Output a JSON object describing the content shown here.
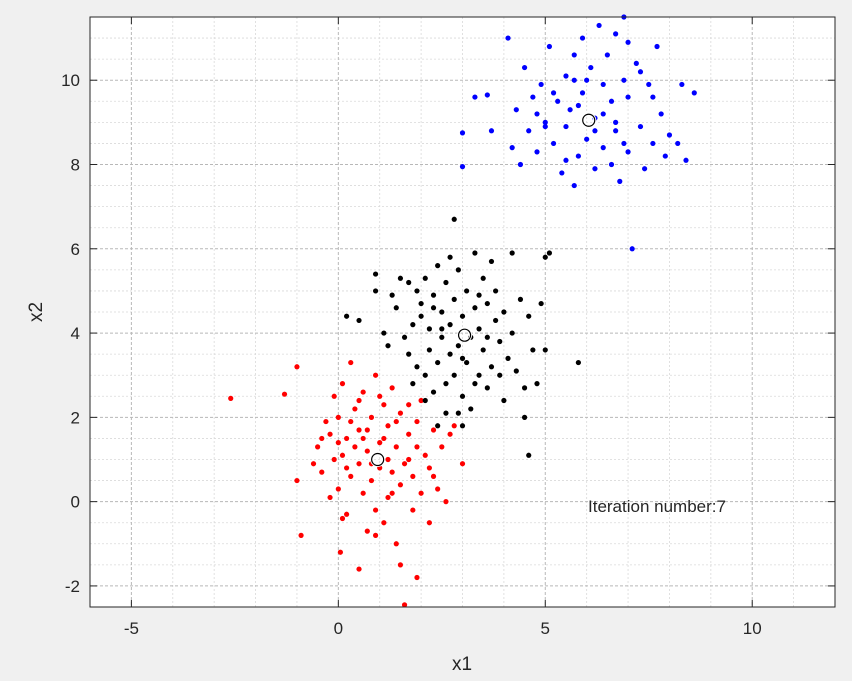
{
  "chart_data": {
    "type": "scatter",
    "title": "",
    "xlabel": "x1",
    "ylabel": "x2",
    "xlim": [
      -6,
      12
    ],
    "ylim": [
      -2.5,
      11.5
    ],
    "xticks": [
      -5,
      0,
      5,
      10
    ],
    "yticks": [
      -2,
      0,
      2,
      4,
      6,
      8,
      10
    ],
    "grid": true,
    "minor_grid": true,
    "annotation": "Iteration number:7",
    "colors": {
      "cluster_1": "#ff0000",
      "cluster_2": "#000000",
      "cluster_3": "#0000ff",
      "centroid": "#000000"
    },
    "series": [
      {
        "color": "#ff0000",
        "points": [
          [
            -2.6,
            2.45
          ],
          [
            -1.3,
            2.55
          ],
          [
            -1.0,
            3.2
          ],
          [
            -0.9,
            -0.8
          ],
          [
            -1.0,
            0.5
          ],
          [
            -0.6,
            0.9
          ],
          [
            -0.5,
            1.3
          ],
          [
            -0.4,
            0.7
          ],
          [
            -0.3,
            1.9
          ],
          [
            -0.2,
            0.1
          ],
          [
            -0.2,
            1.6
          ],
          [
            -0.1,
            2.5
          ],
          [
            0.0,
            0.3
          ],
          [
            0.0,
            2.0
          ],
          [
            0.05,
            -1.2
          ],
          [
            0.1,
            1.1
          ],
          [
            0.1,
            2.8
          ],
          [
            0.2,
            -0.3
          ],
          [
            0.2,
            1.5
          ],
          [
            0.3,
            0.6
          ],
          [
            0.3,
            3.3
          ],
          [
            0.4,
            2.2
          ],
          [
            0.5,
            -1.6
          ],
          [
            0.5,
            0.9
          ],
          [
            0.5,
            1.7
          ],
          [
            0.6,
            0.2
          ],
          [
            0.6,
            2.6
          ],
          [
            0.7,
            1.2
          ],
          [
            0.7,
            -0.7
          ],
          [
            0.8,
            0.5
          ],
          [
            0.8,
            2.0
          ],
          [
            0.9,
            3.0
          ],
          [
            0.9,
            -0.2
          ],
          [
            1.0,
            1.4
          ],
          [
            1.0,
            0.8
          ],
          [
            1.1,
            2.3
          ],
          [
            1.1,
            -0.5
          ],
          [
            1.2,
            0.1
          ],
          [
            1.2,
            1.8
          ],
          [
            1.3,
            0.7
          ],
          [
            1.3,
            2.7
          ],
          [
            1.4,
            1.3
          ],
          [
            1.4,
            -1.0
          ],
          [
            1.5,
            0.4
          ],
          [
            1.5,
            2.1
          ],
          [
            1.5,
            -1.5
          ],
          [
            1.6,
            -2.45
          ],
          [
            1.7,
            1.0
          ],
          [
            1.7,
            1.6
          ],
          [
            1.8,
            -0.2
          ],
          [
            1.8,
            0.6
          ],
          [
            1.9,
            -1.8
          ],
          [
            1.9,
            1.9
          ],
          [
            2.0,
            0.2
          ],
          [
            2.0,
            2.4
          ],
          [
            2.1,
            1.1
          ],
          [
            2.2,
            -0.5
          ],
          [
            2.2,
            0.8
          ],
          [
            2.3,
            1.7
          ],
          [
            2.4,
            0.3
          ],
          [
            2.5,
            1.3
          ],
          [
            2.6,
            0.0
          ],
          [
            2.7,
            1.6
          ],
          [
            2.8,
            1.8
          ],
          [
            3.0,
            0.9
          ],
          [
            0.2,
            0.8
          ],
          [
            0.4,
            1.3
          ],
          [
            -0.1,
            1.0
          ],
          [
            0.6,
            1.5
          ],
          [
            1.0,
            2.5
          ],
          [
            1.3,
            0.2
          ],
          [
            0.8,
            0.9
          ],
          [
            0.0,
            1.4
          ],
          [
            1.6,
            0.9
          ],
          [
            0.3,
            1.9
          ],
          [
            1.1,
            1.5
          ],
          [
            0.5,
            2.4
          ],
          [
            1.4,
            1.9
          ],
          [
            0.9,
            -0.8
          ],
          [
            1.7,
            2.3
          ],
          [
            -0.4,
            1.5
          ],
          [
            2.3,
            0.6
          ],
          [
            0.1,
            -0.4
          ],
          [
            1.9,
            1.3
          ],
          [
            0.7,
            1.7
          ],
          [
            1.2,
            1.0
          ]
        ]
      },
      {
        "color": "#000000",
        "points": [
          [
            0.2,
            4.4
          ],
          [
            0.5,
            4.3
          ],
          [
            0.9,
            5.4
          ],
          [
            0.9,
            5.0
          ],
          [
            1.1,
            4.0
          ],
          [
            1.2,
            3.7
          ],
          [
            1.3,
            4.9
          ],
          [
            1.4,
            4.6
          ],
          [
            1.5,
            5.3
          ],
          [
            1.6,
            3.9
          ],
          [
            1.7,
            3.5
          ],
          [
            1.7,
            5.2
          ],
          [
            1.8,
            4.2
          ],
          [
            1.8,
            2.8
          ],
          [
            1.9,
            3.2
          ],
          [
            1.9,
            5.0
          ],
          [
            2.0,
            4.4
          ],
          [
            2.0,
            4.7
          ],
          [
            2.1,
            3.0
          ],
          [
            2.1,
            5.3
          ],
          [
            2.2,
            3.6
          ],
          [
            2.2,
            4.1
          ],
          [
            2.3,
            2.6
          ],
          [
            2.3,
            4.9
          ],
          [
            2.4,
            3.3
          ],
          [
            2.4,
            5.6
          ],
          [
            2.5,
            4.5
          ],
          [
            2.5,
            3.9
          ],
          [
            2.6,
            2.8
          ],
          [
            2.6,
            5.2
          ],
          [
            2.7,
            3.5
          ],
          [
            2.7,
            4.2
          ],
          [
            2.8,
            3.0
          ],
          [
            2.8,
            4.8
          ],
          [
            2.8,
            6.7
          ],
          [
            2.9,
            3.7
          ],
          [
            2.9,
            5.5
          ],
          [
            3.0,
            2.5
          ],
          [
            3.0,
            4.4
          ],
          [
            3.1,
            3.3
          ],
          [
            3.1,
            5.0
          ],
          [
            3.2,
            3.9
          ],
          [
            3.2,
            2.2
          ],
          [
            3.3,
            4.6
          ],
          [
            3.3,
            5.9
          ],
          [
            3.4,
            3.0
          ],
          [
            3.4,
            4.1
          ],
          [
            3.5,
            3.6
          ],
          [
            3.5,
            5.3
          ],
          [
            3.6,
            2.7
          ],
          [
            3.6,
            4.7
          ],
          [
            3.7,
            3.2
          ],
          [
            3.8,
            4.3
          ],
          [
            3.8,
            5.0
          ],
          [
            3.9,
            3.8
          ],
          [
            4.0,
            2.4
          ],
          [
            4.0,
            4.5
          ],
          [
            4.1,
            3.4
          ],
          [
            4.2,
            5.9
          ],
          [
            4.2,
            4.0
          ],
          [
            4.3,
            3.1
          ],
          [
            4.4,
            4.8
          ],
          [
            4.5,
            2.7
          ],
          [
            4.5,
            2.0
          ],
          [
            4.6,
            4.4
          ],
          [
            4.6,
            1.1
          ],
          [
            4.7,
            3.6
          ],
          [
            4.8,
            2.8
          ],
          [
            4.9,
            4.7
          ],
          [
            5.0,
            3.6
          ],
          [
            5.0,
            5.8
          ],
          [
            5.1,
            5.9
          ],
          [
            5.8,
            3.3
          ],
          [
            2.4,
            1.8
          ],
          [
            2.6,
            2.1
          ],
          [
            2.9,
            2.1
          ],
          [
            3.0,
            1.8
          ],
          [
            3.3,
            2.8
          ],
          [
            3.6,
            3.9
          ],
          [
            2.5,
            4.1
          ],
          [
            3.4,
            4.9
          ],
          [
            2.1,
            2.4
          ],
          [
            3.9,
            3.0
          ],
          [
            3.0,
            3.4
          ],
          [
            2.3,
            4.6
          ],
          [
            3.7,
            5.7
          ],
          [
            2.7,
            5.8
          ]
        ]
      },
      {
        "color": "#0000ff",
        "points": [
          [
            3.0,
            8.75
          ],
          [
            3.0,
            7.95
          ],
          [
            3.3,
            9.6
          ],
          [
            3.6,
            9.65
          ],
          [
            3.7,
            8.8
          ],
          [
            4.1,
            11.0
          ],
          [
            4.2,
            8.4
          ],
          [
            4.3,
            9.3
          ],
          [
            4.4,
            8.0
          ],
          [
            4.5,
            10.3
          ],
          [
            4.6,
            8.8
          ],
          [
            4.7,
            9.6
          ],
          [
            4.8,
            8.3
          ],
          [
            4.9,
            9.9
          ],
          [
            5.0,
            9.0
          ],
          [
            5.1,
            10.8
          ],
          [
            5.2,
            8.5
          ],
          [
            5.3,
            9.5
          ],
          [
            5.4,
            7.8
          ],
          [
            5.5,
            10.1
          ],
          [
            5.5,
            8.9
          ],
          [
            5.6,
            9.3
          ],
          [
            5.7,
            7.5
          ],
          [
            5.7,
            10.6
          ],
          [
            5.8,
            8.2
          ],
          [
            5.9,
            9.7
          ],
          [
            5.9,
            11.0
          ],
          [
            6.0,
            8.6
          ],
          [
            6.1,
            10.3
          ],
          [
            6.2,
            7.9
          ],
          [
            6.2,
            9.1
          ],
          [
            6.3,
            11.3
          ],
          [
            6.4,
            8.4
          ],
          [
            6.4,
            9.9
          ],
          [
            6.5,
            10.6
          ],
          [
            6.6,
            8.0
          ],
          [
            6.6,
            9.5
          ],
          [
            6.7,
            8.8
          ],
          [
            6.7,
            11.1
          ],
          [
            6.8,
            7.6
          ],
          [
            6.9,
            10.0
          ],
          [
            6.9,
            11.5
          ],
          [
            7.0,
            8.3
          ],
          [
            7.0,
            9.6
          ],
          [
            7.1,
            6.0
          ],
          [
            7.2,
            10.4
          ],
          [
            7.3,
            8.9
          ],
          [
            7.4,
            7.9
          ],
          [
            7.5,
            9.9
          ],
          [
            7.6,
            8.5
          ],
          [
            7.7,
            10.8
          ],
          [
            7.8,
            9.2
          ],
          [
            8.0,
            8.7
          ],
          [
            8.2,
            8.5
          ],
          [
            8.3,
            9.9
          ],
          [
            8.4,
            8.1
          ],
          [
            8.6,
            9.7
          ],
          [
            5.2,
            9.7
          ],
          [
            5.8,
            9.4
          ],
          [
            6.4,
            9.2
          ],
          [
            6.9,
            8.5
          ],
          [
            5.5,
            8.1
          ],
          [
            7.3,
            10.2
          ],
          [
            6.0,
            10.0
          ],
          [
            6.7,
            9.0
          ],
          [
            7.6,
            9.6
          ],
          [
            5.0,
            8.9
          ],
          [
            6.2,
            8.8
          ],
          [
            7.0,
            10.9
          ],
          [
            5.7,
            10.0
          ],
          [
            4.8,
            9.2
          ],
          [
            7.9,
            8.2
          ]
        ]
      }
    ],
    "centroids": [
      [
        0.95,
        1.0
      ],
      [
        3.05,
        3.95
      ],
      [
        6.05,
        9.05
      ]
    ]
  }
}
